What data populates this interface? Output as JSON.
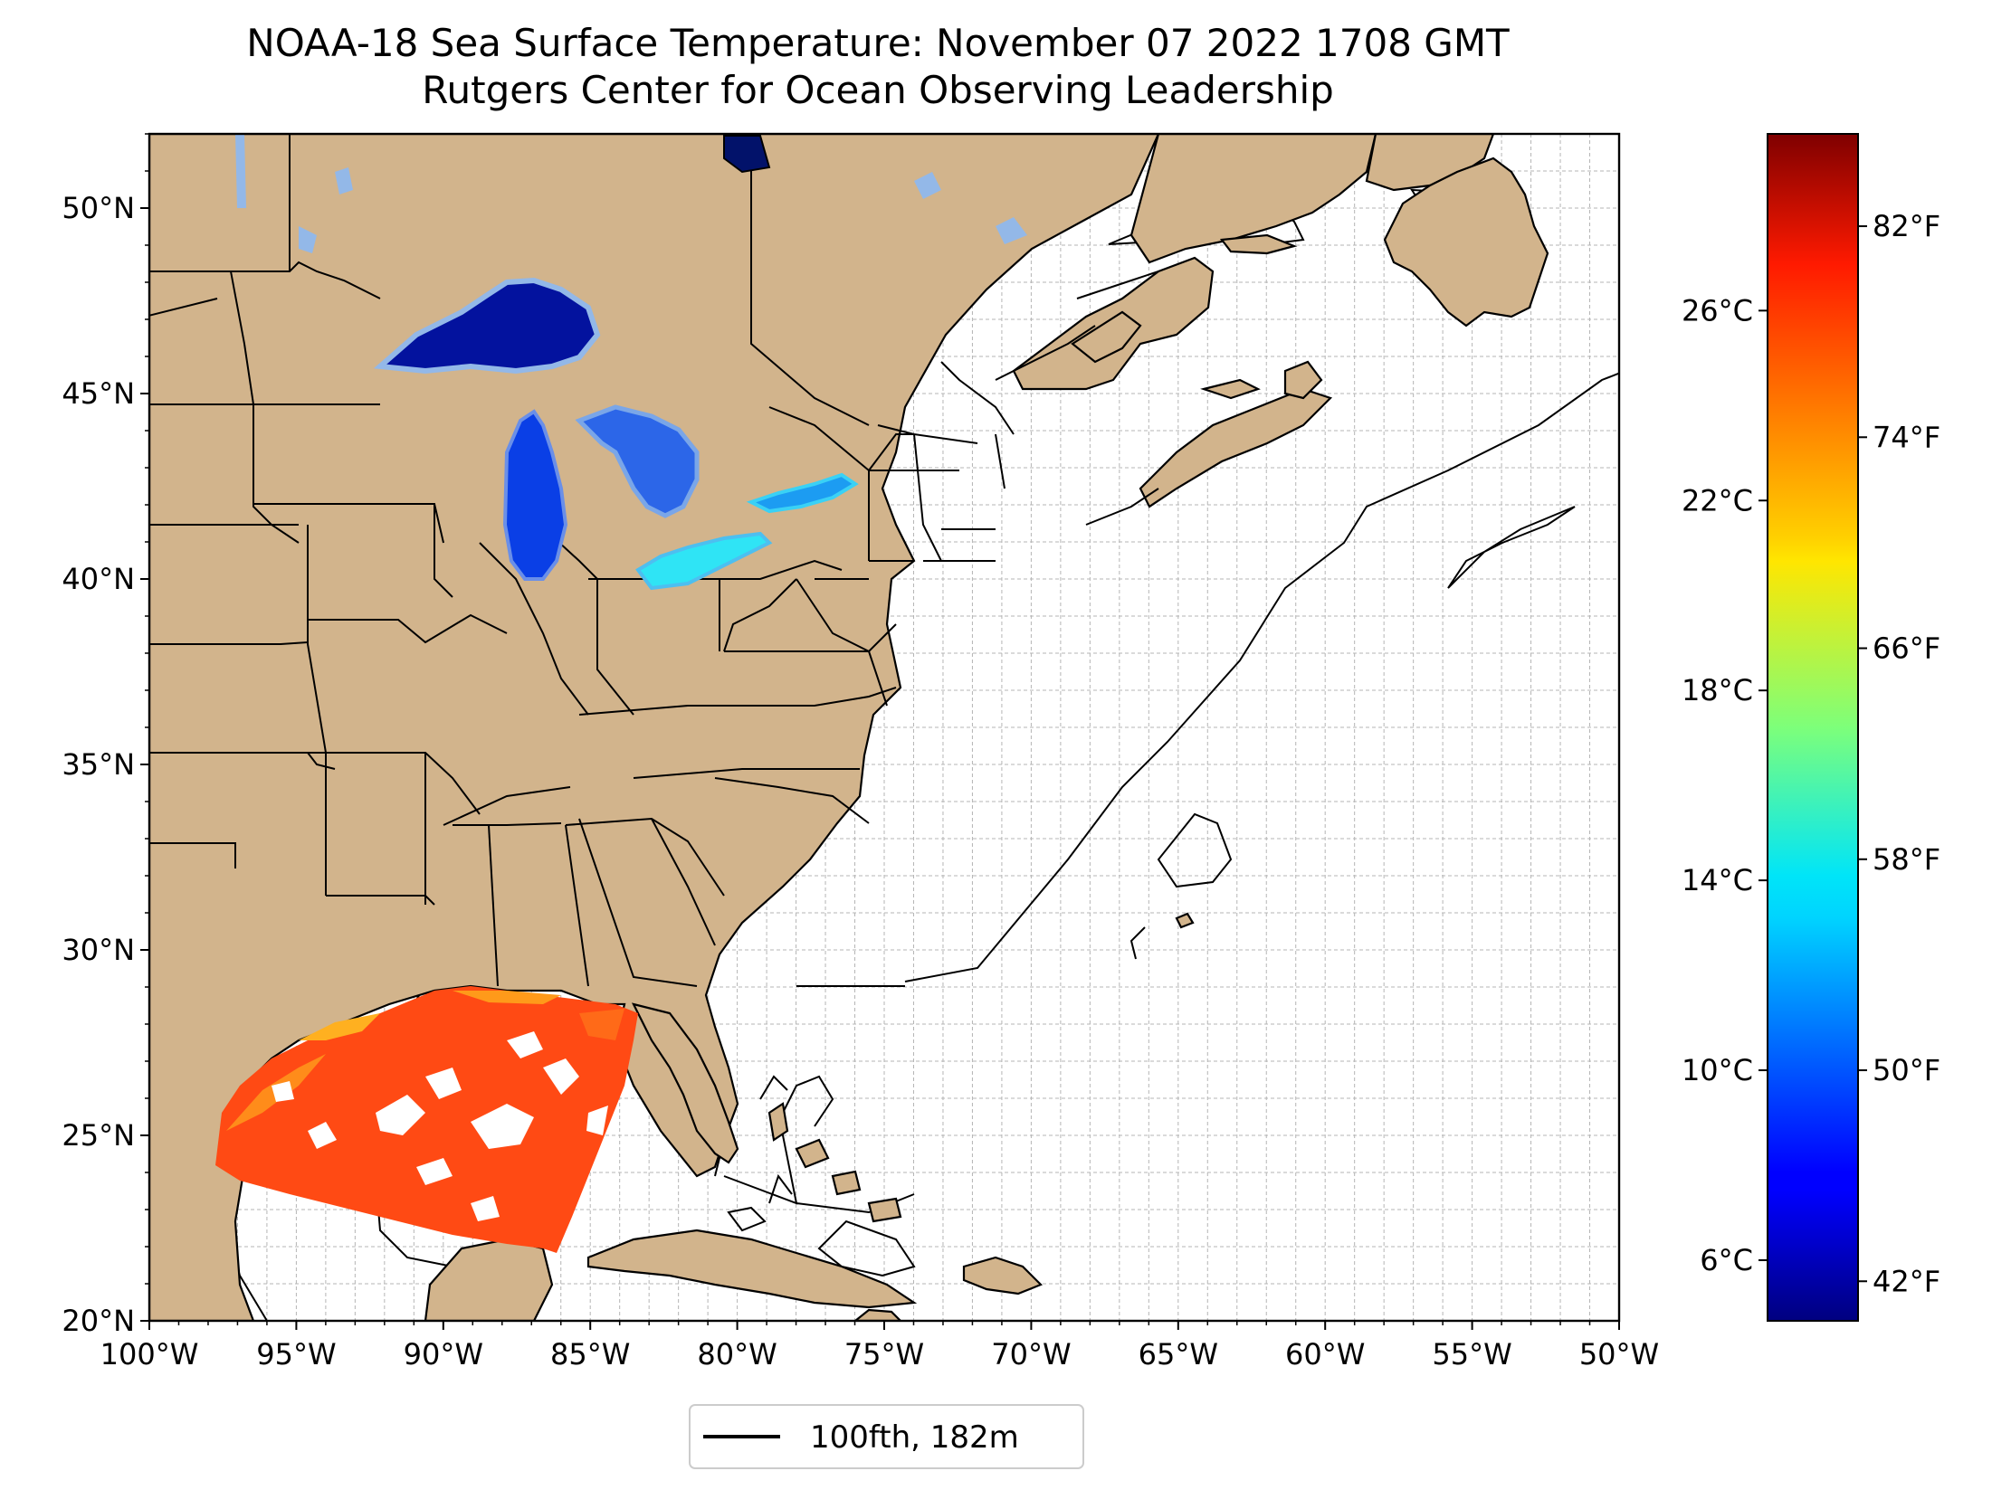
{
  "title": {
    "line1": "NOAA-18 Sea Surface Temperature: November 07 2022 1708 GMT",
    "line2": "Rutgers Center for Ocean Observing Leadership"
  },
  "map": {
    "lon_range": [
      -100,
      -50
    ],
    "lat_range": [
      20,
      52
    ],
    "lon_ticks": [
      {
        "value": -100,
        "label": "100°W"
      },
      {
        "value": -95,
        "label": "95°W"
      },
      {
        "value": -90,
        "label": "90°W"
      },
      {
        "value": -85,
        "label": "85°W"
      },
      {
        "value": -80,
        "label": "80°W"
      },
      {
        "value": -75,
        "label": "75°W"
      },
      {
        "value": -70,
        "label": "70°W"
      },
      {
        "value": -65,
        "label": "65°W"
      },
      {
        "value": -60,
        "label": "60°W"
      },
      {
        "value": -55,
        "label": "55°W"
      },
      {
        "value": -50,
        "label": "50°W"
      }
    ],
    "lat_ticks": [
      {
        "value": 20,
        "label": "20°N"
      },
      {
        "value": 25,
        "label": "25°N"
      },
      {
        "value": 30,
        "label": "30°N"
      },
      {
        "value": 35,
        "label": "35°N"
      },
      {
        "value": 40,
        "label": "40°N"
      },
      {
        "value": 45,
        "label": "45°N"
      },
      {
        "value": 50,
        "label": "50°N"
      }
    ],
    "grid": true,
    "land_color": "#d2b48c",
    "ocean_color": "#ffffff"
  },
  "colorbar": {
    "colormap": "jet",
    "celsius_ticks": [
      {
        "value": 6,
        "label": "6°C"
      },
      {
        "value": 10,
        "label": "10°C"
      },
      {
        "value": 14,
        "label": "14°C"
      },
      {
        "value": 18,
        "label": "18°C"
      },
      {
        "value": 22,
        "label": "22°C"
      },
      {
        "value": 26,
        "label": "26°C"
      }
    ],
    "fahrenheit_ticks": [
      {
        "value": 42,
        "label": "42°F"
      },
      {
        "value": 50,
        "label": "50°F"
      },
      {
        "value": 58,
        "label": "58°F"
      },
      {
        "value": 66,
        "label": "66°F"
      },
      {
        "value": 74,
        "label": "74°F"
      },
      {
        "value": 82,
        "label": "82°F"
      }
    ],
    "range_f": [
      40.5,
      85.5
    ]
  },
  "legend": {
    "label": "100fth, 182m",
    "line_color": "#000000",
    "placement": "bottom-center"
  }
}
